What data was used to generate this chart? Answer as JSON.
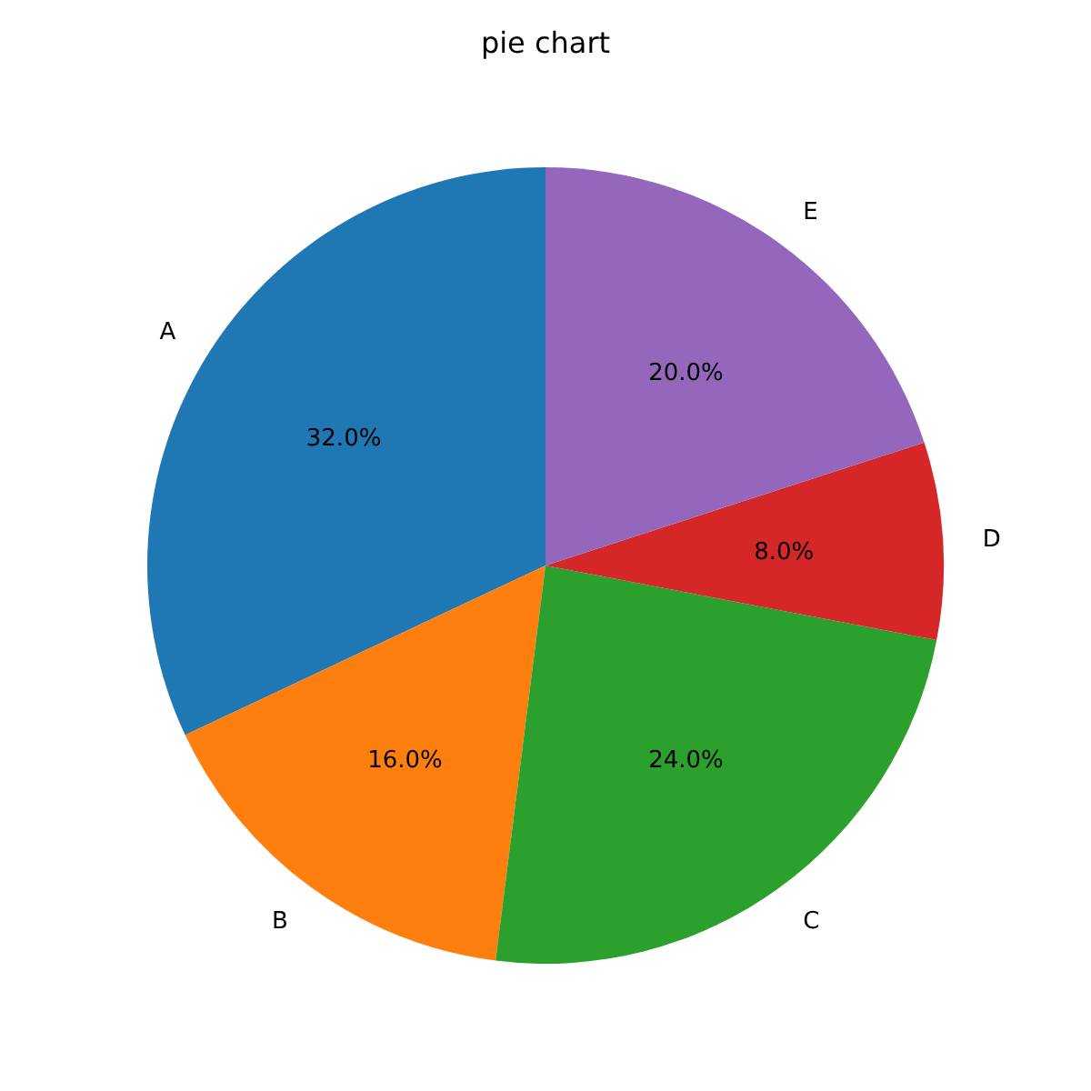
{
  "chart_data": {
    "type": "pie",
    "title": "pie chart",
    "categories": [
      "A",
      "B",
      "C",
      "D",
      "E"
    ],
    "values": [
      32,
      16,
      24,
      8,
      20
    ],
    "colors": [
      "#1f77b4",
      "#ff7f0e",
      "#2ca02c",
      "#d62728",
      "#9467bd"
    ],
    "value_labels": [
      "32.0%",
      "16.0%",
      "24.0%",
      "8.0%",
      "20.0%"
    ]
  }
}
